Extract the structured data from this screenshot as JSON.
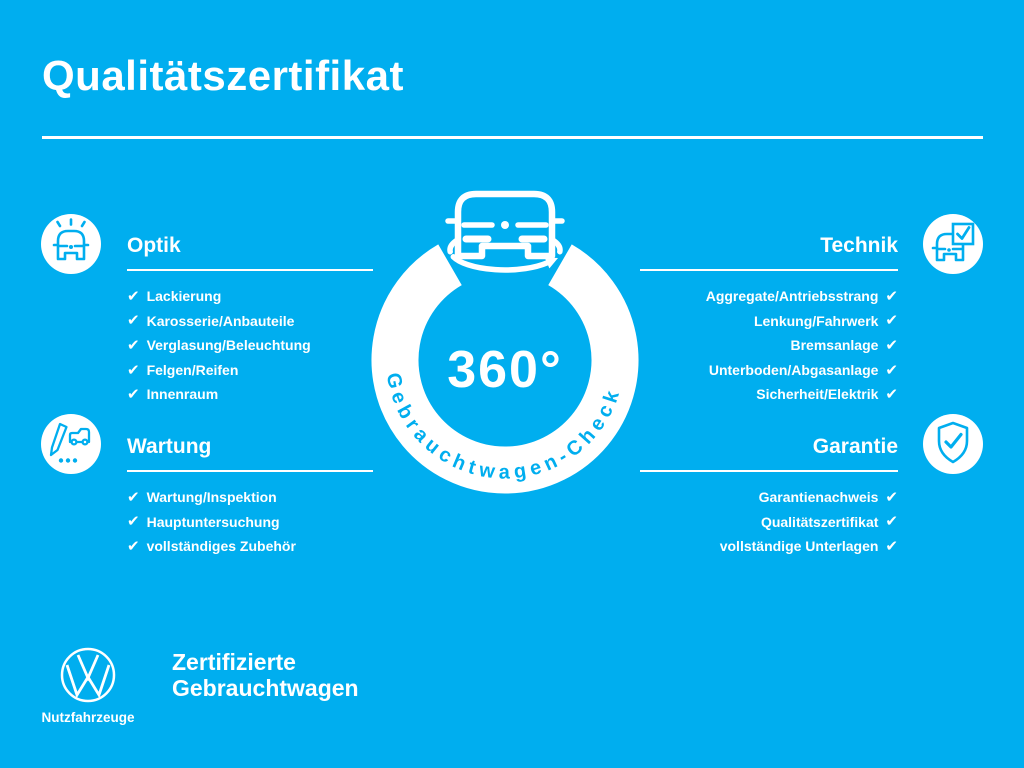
{
  "header": {
    "title": "Qualitätszertifikat"
  },
  "theme": {
    "background": "#00AEEF",
    "foreground": "#FFFFFF"
  },
  "checkmark": "✔",
  "center_badge": {
    "degrees_label": "360°",
    "ring_label": "Gebrauchtwagen-Check",
    "icon": "car-360-rotation-icon"
  },
  "sections": [
    {
      "id": "optik",
      "title": "Optik",
      "icon": "car-shine-icon",
      "items": [
        "Lackierung",
        "Karosserie/Anbauteile",
        "Verglasung/Beleuchtung",
        "Felgen/Reifen",
        "Innenraum"
      ]
    },
    {
      "id": "technik",
      "title": "Technik",
      "icon": "car-checklist-icon",
      "items": [
        "Aggregate/Antriebsstrang",
        "Lenkung/Fahrwerk",
        "Bremsanlage",
        "Unterboden/Abgasanlage",
        "Sicherheit/Elektrik"
      ]
    },
    {
      "id": "wartung",
      "title": "Wartung",
      "icon": "service-record-pencil-icon",
      "items": [
        "Wartung/Inspektion",
        "Hauptuntersuchung",
        "vollständiges Zubehör"
      ]
    },
    {
      "id": "garantie",
      "title": "Garantie",
      "icon": "shield-check-icon",
      "items": [
        "Garantienachweis",
        "Qualitätszertifikat",
        "vollständige Unterlagen"
      ]
    }
  ],
  "footer": {
    "logo": "vw-logo",
    "brand": "Nutzfahrzeuge",
    "tagline": [
      "Zertifizierte",
      "Gebrauchtwagen"
    ]
  }
}
